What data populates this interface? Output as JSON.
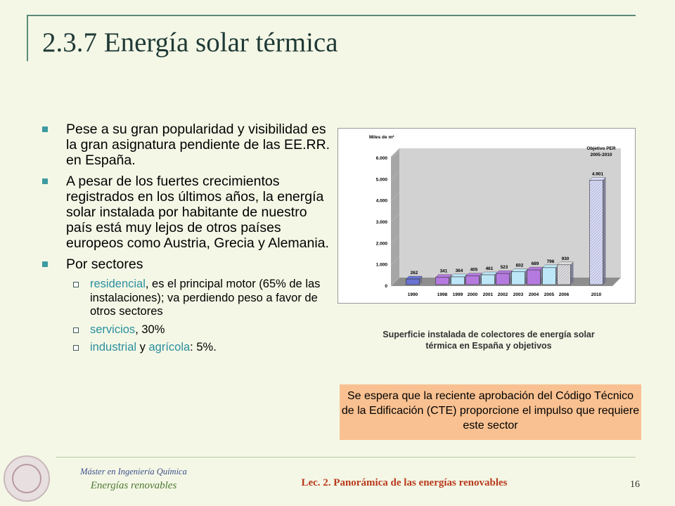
{
  "slide": {
    "title": "2.3.7 Energía solar térmica",
    "bullets": [
      "Pese a su gran popularidad y visibilidad es la gran asignatura pendiente de las EE.RR. en España.",
      "A pesar de los fuertes crecimientos registrados en los últimos años, la energía solar instalada por habitante de nuestro país está muy lejos de otros países europeos como Austria, Grecia y Alemania.",
      "Por sectores"
    ],
    "sectors": {
      "s1_term": "residencial",
      "s1_rest": ", es el principal motor (65% de las instalaciones); va perdiendo peso a favor de otros sectores",
      "s2_term": "servicios",
      "s2_rest": ", 30%",
      "s3_term1": "industrial",
      "s3_mid": " y ",
      "s3_term2": "agrícola",
      "s3_rest": ": 5%."
    },
    "caption_line1": "Superficie instalada de colectores de energía solar",
    "caption_line2": "térmica en España y objetivos",
    "note": "Se espera que la reciente aprobación del Código Técnico de la Edificación (CTE) proporcione el impulso que requiere este sector"
  },
  "footer": {
    "program": "Máster en Ingeniería Química",
    "course": "Energías renovables",
    "lecture": "Lec. 2. Panorámica de las energías renovables",
    "page": "16"
  },
  "chart_data": {
    "type": "bar",
    "ylabel": "Miles de m²",
    "ylim": [
      0,
      6000
    ],
    "yticks": [
      "0",
      "1.000",
      "2.000",
      "3.000",
      "4.000",
      "5.000",
      "6.000"
    ],
    "categories": [
      "1990",
      "1998",
      "1999",
      "2000",
      "2001",
      "2002",
      "2003",
      "2004",
      "2005",
      "2006",
      "2010"
    ],
    "values": [
      262,
      341,
      364,
      405,
      461,
      523,
      602,
      689,
      796,
      930,
      4901
    ],
    "labels": [
      "262",
      "341",
      "364",
      "405",
      "461",
      "523",
      "602",
      "689",
      "796",
      "930",
      "4.901"
    ],
    "colors": [
      "#6a72d4",
      "#b57ae0",
      "#bde7f7",
      "#b57ae0",
      "#bde7f7",
      "#b57ae0",
      "#bde7f7",
      "#b57ae0",
      "#bde7f7",
      "#dcdcdc",
      "#d8dcf6"
    ],
    "annotation_line1": "Objetivo PER",
    "annotation_line2": "2005-2010"
  }
}
